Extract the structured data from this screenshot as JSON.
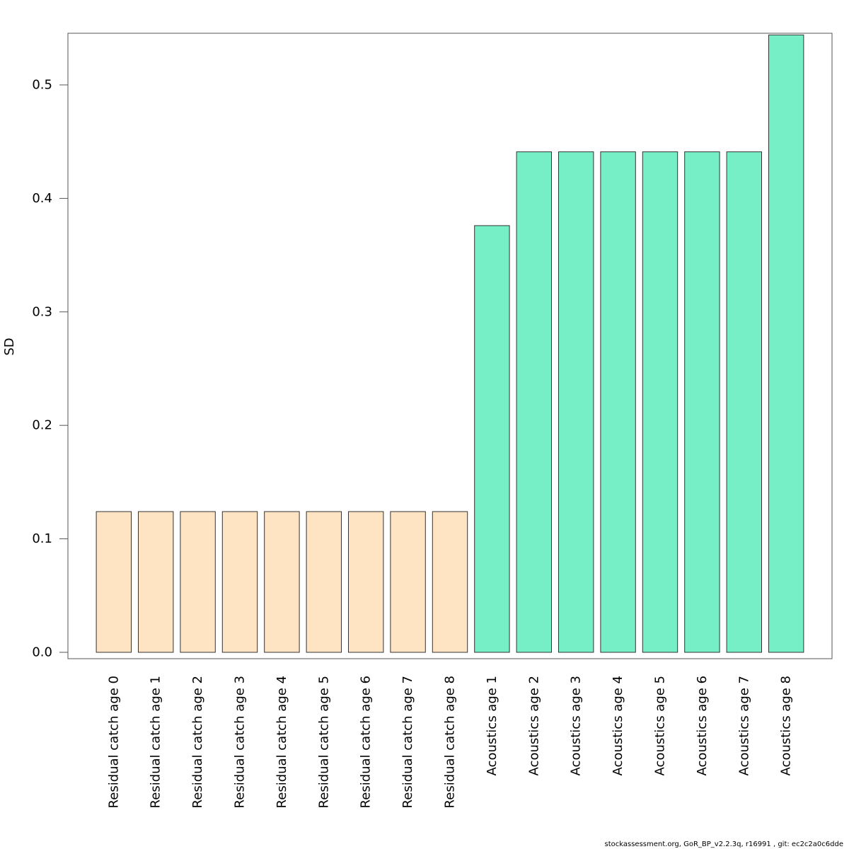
{
  "chart_data": {
    "type": "bar",
    "title": "",
    "xlabel": "",
    "ylabel": "SD",
    "ylim": [
      0,
      0.5435
    ],
    "yticks": [
      0.0,
      0.1,
      0.2,
      0.3,
      0.4,
      0.5
    ],
    "ytick_labels": [
      "0.0",
      "0.1",
      "0.2",
      "0.3",
      "0.4",
      "0.5"
    ],
    "grid": false,
    "categories": [
      "Residual catch age 0",
      "Residual catch age 1",
      "Residual catch age 2",
      "Residual catch age 3",
      "Residual catch age 4",
      "Residual catch age 5",
      "Residual catch age 6",
      "Residual catch age 7",
      "Residual catch age 8",
      "Acoustics age 1",
      "Acoustics age 2",
      "Acoustics age 3",
      "Acoustics age 4",
      "Acoustics age 5",
      "Acoustics age 6",
      "Acoustics age 7",
      "Acoustics age 8"
    ],
    "values": [
      0.124,
      0.124,
      0.124,
      0.124,
      0.124,
      0.124,
      0.124,
      0.124,
      0.124,
      0.376,
      0.441,
      0.441,
      0.441,
      0.441,
      0.441,
      0.441,
      0.544
    ],
    "bar_colors": [
      "#FFE4C4",
      "#FFE4C4",
      "#FFE4C4",
      "#FFE4C4",
      "#FFE4C4",
      "#FFE4C4",
      "#FFE4C4",
      "#FFE4C4",
      "#FFE4C4",
      "#76EEC6",
      "#76EEC6",
      "#76EEC6",
      "#76EEC6",
      "#76EEC6",
      "#76EEC6",
      "#76EEC6",
      "#76EEC6"
    ]
  },
  "footer": {
    "text": "stockassessment.org, GoR_BP_v2.2.3q, r16991 , git: ec2c2a0c6dde"
  }
}
